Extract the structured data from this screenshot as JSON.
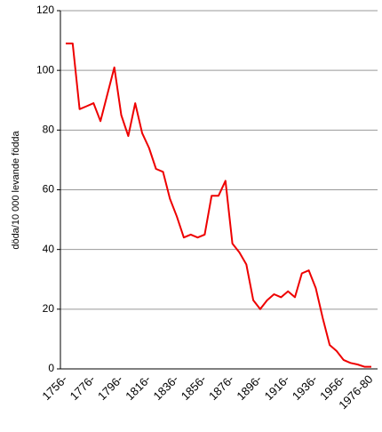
{
  "chart_data": {
    "type": "line",
    "y_label": "döda/10 000 levande födda",
    "categories": [
      "1756-",
      null,
      null,
      null,
      "1776-",
      null,
      null,
      null,
      "1796-",
      null,
      null,
      null,
      "1816-",
      null,
      null,
      null,
      "1836-",
      null,
      null,
      null,
      "1856-",
      null,
      null,
      null,
      "1876-",
      null,
      null,
      null,
      "1896-",
      null,
      null,
      null,
      "1916-",
      null,
      null,
      null,
      "1936-",
      null,
      null,
      null,
      "1956-",
      null,
      null,
      null,
      "1976-80"
    ],
    "values": [
      109,
      109,
      87,
      88,
      89,
      83,
      92,
      101,
      85,
      78,
      89,
      79,
      74,
      67,
      66,
      57,
      51,
      44,
      45,
      44,
      45,
      58,
      58,
      63,
      42,
      39,
      35,
      23,
      20,
      23,
      25,
      24,
      26,
      24,
      32,
      33,
      27,
      17,
      8,
      6,
      3,
      2,
      1.5,
      0.7,
      0.7
    ],
    "color": "#ee0000",
    "ylim": [
      0,
      120
    ],
    "yticks": [
      0,
      20,
      40,
      60,
      80,
      100,
      120
    ],
    "grid": true
  }
}
